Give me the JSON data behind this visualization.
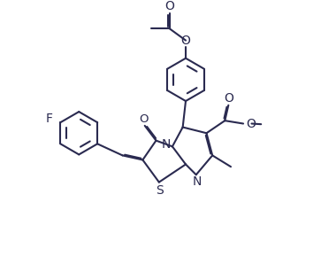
{
  "background_color": "#ffffff",
  "line_color": "#2a2a50",
  "line_width": 1.5,
  "dbo": 0.035,
  "fs": 9.5,
  "xlim": [
    0,
    10
  ],
  "ylim": [
    0,
    9
  ],
  "figw": 3.63,
  "figh": 3.16,
  "dpi": 100
}
